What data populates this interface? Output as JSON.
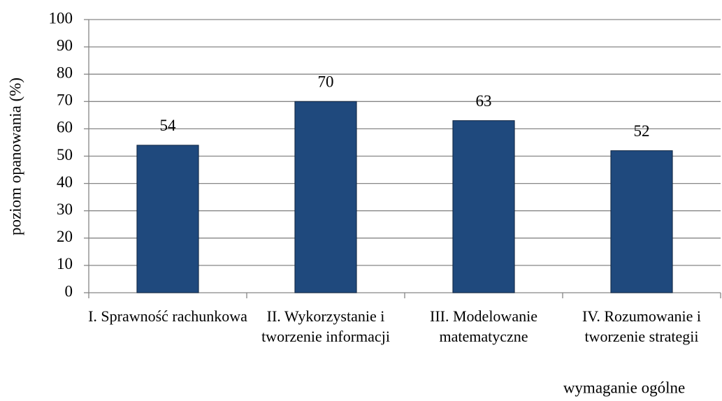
{
  "chart_data": {
    "type": "bar",
    "y_label": "poziom opanowania (%)",
    "x_label": "wymaganie ogólne",
    "categories": [
      "I. Sprawność rachunkowa",
      "II. Wykorzystanie i tworzenie informacji",
      "III. Modelowanie matematyczne",
      "IV. Rozumowanie i tworzenie strategii"
    ],
    "values": [
      54,
      70,
      63,
      52
    ],
    "color": "#1f497d",
    "ylim": [
      0,
      100
    ],
    "yticks": [
      0,
      10,
      20,
      30,
      40,
      50,
      60,
      70,
      80,
      90,
      100
    ],
    "grid": true
  }
}
